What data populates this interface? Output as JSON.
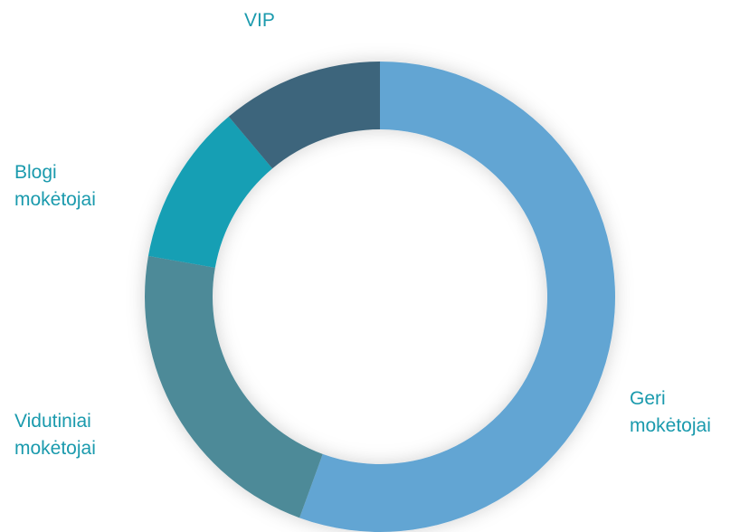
{
  "chart_data": {
    "type": "donut",
    "categories": [
      "Geri mokėtojai",
      "Vidutiniai mokėtojai",
      "Blogi mokėtojai",
      "VIP"
    ],
    "values": [
      5,
      2,
      1,
      1
    ],
    "colors": [
      "#62a5d3",
      "#4e8a98",
      "#139fb4",
      "#3e657b"
    ],
    "label_color": "#1a9aad"
  }
}
